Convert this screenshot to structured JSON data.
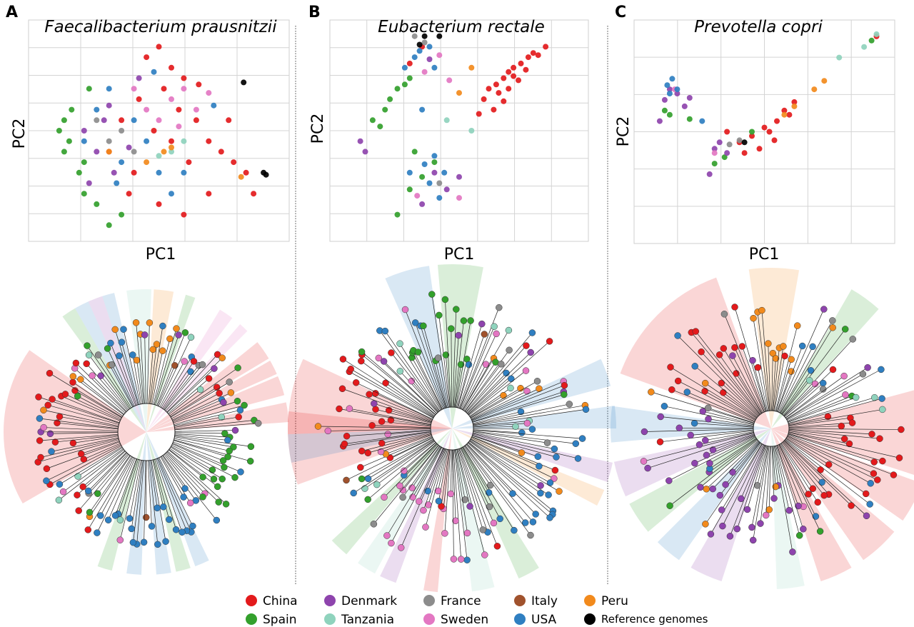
{
  "figure": {
    "panels": [
      {
        "letter": "A",
        "species": "Faecalibacterium prausnitzii",
        "xlabel": "PC1",
        "ylabel": "PC2"
      },
      {
        "letter": "B",
        "species": "Eubacterium rectale",
        "xlabel": "PC1",
        "ylabel": "PC2"
      },
      {
        "letter": "C",
        "species": "Prevotella copri",
        "xlabel": "PC1",
        "ylabel": "PC2"
      }
    ],
    "legend": [
      {
        "label": "China",
        "color": "#e31a1c"
      },
      {
        "label": "Spain",
        "color": "#33a02c"
      },
      {
        "label": "Denmark",
        "color": "#8e44ad"
      },
      {
        "label": "Tanzania",
        "color": "#8fd3bd"
      },
      {
        "label": "France",
        "color": "#8c8c8c"
      },
      {
        "label": "Sweden",
        "color": "#e377c2"
      },
      {
        "label": "Italy",
        "color": "#a0522d"
      },
      {
        "label": "USA",
        "color": "#2f7fc1"
      },
      {
        "label": "Peru",
        "color": "#f28a1c"
      },
      {
        "label": "Reference genomes",
        "color": "#000000"
      }
    ]
  },
  "chart_data": [
    {
      "type": "scatter",
      "title": "Faecalibacterium prausnitzii",
      "xlabel": "PC1",
      "ylabel": "PC2",
      "grid": true,
      "ticks_labeled": false,
      "series": [
        {
          "name": "China",
          "color": "#e31a1c",
          "points": [
            [
              0.45,
              0.85
            ],
            [
              0.5,
              0.9
            ],
            [
              0.55,
              0.8
            ],
            [
              0.6,
              0.75
            ],
            [
              0.52,
              0.7
            ],
            [
              0.58,
              0.6
            ],
            [
              0.65,
              0.55
            ],
            [
              0.7,
              0.45
            ],
            [
              0.75,
              0.4
            ],
            [
              0.8,
              0.35
            ],
            [
              0.85,
              0.3
            ],
            [
              0.48,
              0.5
            ],
            [
              0.55,
              0.45
            ],
            [
              0.62,
              0.35
            ],
            [
              0.7,
              0.2
            ],
            [
              0.6,
              0.1
            ],
            [
              0.5,
              0.15
            ],
            [
              0.4,
              0.3
            ],
            [
              0.35,
              0.55
            ],
            [
              0.42,
              0.65
            ],
            [
              0.88,
              0.2
            ],
            [
              0.78,
              0.55
            ],
            [
              0.66,
              0.72
            ],
            [
              0.3,
              0.4
            ],
            [
              0.38,
              0.2
            ]
          ]
        },
        {
          "name": "Spain",
          "color": "#33a02c",
          "points": [
            [
              0.1,
              0.5
            ],
            [
              0.12,
              0.4
            ],
            [
              0.15,
              0.6
            ],
            [
              0.18,
              0.3
            ],
            [
              0.2,
              0.2
            ],
            [
              0.22,
              0.7
            ],
            [
              0.14,
              0.45
            ],
            [
              0.25,
              0.15
            ],
            [
              0.3,
              0.05
            ],
            [
              0.12,
              0.55
            ],
            [
              0.2,
              0.35
            ],
            [
              0.35,
              0.1
            ]
          ]
        },
        {
          "name": "Denmark",
          "color": "#8e44ad",
          "points": [
            [
              0.2,
              0.5
            ],
            [
              0.25,
              0.4
            ],
            [
              0.28,
              0.55
            ],
            [
              0.32,
              0.3
            ],
            [
              0.3,
              0.62
            ],
            [
              0.38,
              0.42
            ],
            [
              0.22,
              0.25
            ],
            [
              0.42,
              0.75
            ]
          ]
        },
        {
          "name": "Tanzania",
          "color": "#8fd3bd",
          "points": [
            [
              0.55,
              0.4
            ],
            [
              0.6,
              0.45
            ],
            [
              0.5,
              0.38
            ]
          ]
        },
        {
          "name": "France",
          "color": "#8c8c8c",
          "points": [
            [
              0.3,
              0.45
            ],
            [
              0.35,
              0.5
            ],
            [
              0.4,
              0.4
            ],
            [
              0.25,
              0.55
            ]
          ]
        },
        {
          "name": "Sweden",
          "color": "#e377c2",
          "points": [
            [
              0.45,
              0.6
            ],
            [
              0.55,
              0.65
            ],
            [
              0.6,
              0.7
            ],
            [
              0.5,
              0.55
            ],
            [
              0.65,
              0.6
            ],
            [
              0.7,
              0.68
            ],
            [
              0.4,
              0.7
            ],
            [
              0.58,
              0.52
            ]
          ]
        },
        {
          "name": "USA",
          "color": "#2f7fc1",
          "points": [
            [
              0.25,
              0.6
            ],
            [
              0.3,
              0.7
            ],
            [
              0.35,
              0.35
            ],
            [
              0.4,
              0.55
            ],
            [
              0.45,
              0.45
            ],
            [
              0.5,
              0.3
            ],
            [
              0.55,
              0.2
            ],
            [
              0.6,
              0.3
            ],
            [
              0.2,
              0.45
            ],
            [
              0.33,
              0.25
            ],
            [
              0.48,
              0.78
            ],
            [
              0.72,
              0.62
            ]
          ]
        },
        {
          "name": "Peru",
          "color": "#f28a1c",
          "points": [
            [
              0.3,
              0.4
            ],
            [
              0.52,
              0.4
            ],
            [
              0.55,
              0.42
            ],
            [
              0.45,
              0.35
            ],
            [
              0.83,
              0.28
            ]
          ]
        },
        {
          "name": "Reference genomes",
          "color": "#000000",
          "points": [
            [
              0.84,
              0.73
            ],
            [
              0.92,
              0.3
            ],
            [
              0.93,
              0.29
            ]
          ]
        }
      ]
    },
    {
      "type": "scatter",
      "title": "Eubacterium rectale",
      "xlabel": "PC1",
      "ylabel": "PC2",
      "grid": true,
      "ticks_labeled": false,
      "series": [
        {
          "name": "China",
          "color": "#e31a1c",
          "points": [
            [
              0.6,
              0.65
            ],
            [
              0.62,
              0.7
            ],
            [
              0.65,
              0.72
            ],
            [
              0.68,
              0.75
            ],
            [
              0.7,
              0.78
            ],
            [
              0.72,
              0.8
            ],
            [
              0.75,
              0.82
            ],
            [
              0.78,
              0.85
            ],
            [
              0.8,
              0.87
            ],
            [
              0.64,
              0.6
            ],
            [
              0.66,
              0.68
            ],
            [
              0.7,
              0.7
            ],
            [
              0.74,
              0.74
            ],
            [
              0.58,
              0.58
            ],
            [
              0.77,
              0.79
            ],
            [
              0.82,
              0.86
            ],
            [
              0.68,
              0.64
            ],
            [
              0.72,
              0.76
            ],
            [
              0.85,
              0.9
            ],
            [
              0.3,
              0.82
            ],
            [
              0.35,
              0.9
            ]
          ]
        },
        {
          "name": "Spain",
          "color": "#33a02c",
          "points": [
            [
              0.15,
              0.55
            ],
            [
              0.2,
              0.6
            ],
            [
              0.22,
              0.65
            ],
            [
              0.25,
              0.7
            ],
            [
              0.28,
              0.72
            ],
            [
              0.18,
              0.52
            ],
            [
              0.3,
              0.75
            ],
            [
              0.35,
              0.28
            ],
            [
              0.3,
              0.22
            ],
            [
              0.25,
              0.1
            ],
            [
              0.4,
              0.35
            ],
            [
              0.32,
              0.4
            ]
          ]
        },
        {
          "name": "Denmark",
          "color": "#8e44ad",
          "points": [
            [
              0.1,
              0.45
            ],
            [
              0.12,
              0.4
            ],
            [
              0.4,
              0.3
            ],
            [
              0.45,
              0.22
            ],
            [
              0.35,
              0.15
            ],
            [
              0.5,
              0.28
            ],
            [
              0.38,
              0.84
            ]
          ]
        },
        {
          "name": "Tanzania",
          "color": "#8fd3bd",
          "points": [
            [
              0.55,
              0.5
            ],
            [
              0.45,
              0.55
            ]
          ]
        },
        {
          "name": "France",
          "color": "#8c8c8c",
          "points": [
            [
              0.32,
              0.95
            ],
            [
              0.36,
              0.92
            ],
            [
              0.42,
              0.25
            ]
          ]
        },
        {
          "name": "Sweden",
          "color": "#e377c2",
          "points": [
            [
              0.36,
              0.78
            ],
            [
              0.42,
              0.86
            ],
            [
              0.46,
              0.74
            ],
            [
              0.5,
              0.18
            ],
            [
              0.33,
              0.19
            ]
          ]
        },
        {
          "name": "USA",
          "color": "#2f7fc1",
          "points": [
            [
              0.32,
              0.85
            ],
            [
              0.34,
              0.88
            ],
            [
              0.38,
              0.9
            ],
            [
              0.4,
              0.8
            ],
            [
              0.28,
              0.8
            ],
            [
              0.36,
              0.34
            ],
            [
              0.4,
              0.38
            ],
            [
              0.44,
              0.3
            ],
            [
              0.38,
              0.25
            ],
            [
              0.3,
              0.3
            ],
            [
              0.42,
              0.18
            ],
            [
              0.35,
              0.6
            ]
          ]
        },
        {
          "name": "Peru",
          "color": "#f28a1c",
          "points": [
            [
              0.55,
              0.8
            ],
            [
              0.5,
              0.68
            ]
          ]
        },
        {
          "name": "Reference genomes",
          "color": "#000000",
          "points": [
            [
              0.36,
              0.95
            ],
            [
              0.42,
              0.95
            ],
            [
              0.34,
              0.91
            ]
          ]
        }
      ]
    },
    {
      "type": "scatter",
      "title": "Prevotella copri",
      "xlabel": "PC1",
      "ylabel": "PC2",
      "grid": true,
      "ticks_labeled": false,
      "series": [
        {
          "name": "China",
          "color": "#e31a1c",
          "points": [
            [
              0.4,
              0.45
            ],
            [
              0.45,
              0.48
            ],
            [
              0.5,
              0.52
            ],
            [
              0.55,
              0.55
            ],
            [
              0.6,
              0.58
            ],
            [
              0.48,
              0.42
            ],
            [
              0.52,
              0.5
            ],
            [
              0.58,
              0.6
            ],
            [
              0.62,
              0.64
            ],
            [
              0.35,
              0.5
            ],
            [
              0.42,
              0.4
            ],
            [
              0.54,
              0.46
            ],
            [
              0.95,
              0.95
            ]
          ]
        },
        {
          "name": "Spain",
          "color": "#33a02c",
          "points": [
            [
              0.1,
              0.6
            ],
            [
              0.12,
              0.58
            ],
            [
              0.2,
              0.56
            ],
            [
              0.3,
              0.35
            ],
            [
              0.34,
              0.38
            ],
            [
              0.45,
              0.5
            ],
            [
              0.93,
              0.93
            ]
          ]
        },
        {
          "name": "Denmark",
          "color": "#8e44ad",
          "points": [
            [
              0.1,
              0.65
            ],
            [
              0.12,
              0.7
            ],
            [
              0.15,
              0.68
            ],
            [
              0.18,
              0.62
            ],
            [
              0.2,
              0.66
            ],
            [
              0.3,
              0.42
            ],
            [
              0.32,
              0.45
            ],
            [
              0.35,
              0.4
            ],
            [
              0.08,
              0.55
            ],
            [
              0.28,
              0.3
            ]
          ]
        },
        {
          "name": "Tanzania",
          "color": "#8fd3bd",
          "points": [
            [
              0.8,
              0.85
            ],
            [
              0.9,
              0.9
            ],
            [
              0.95,
              0.96
            ]
          ]
        },
        {
          "name": "France",
          "color": "#8c8c8c",
          "points": [
            [
              0.36,
              0.44
            ],
            [
              0.4,
              0.46
            ]
          ]
        },
        {
          "name": "Sweden",
          "color": "#e377c2",
          "points": [
            [
              0.14,
              0.7
            ],
            [
              0.3,
              0.4
            ]
          ]
        },
        {
          "name": "USA",
          "color": "#2f7fc1",
          "points": [
            [
              0.11,
              0.72
            ],
            [
              0.13,
              0.75
            ],
            [
              0.15,
              0.7
            ],
            [
              0.12,
              0.68
            ],
            [
              0.25,
              0.55
            ]
          ]
        },
        {
          "name": "Peru",
          "color": "#f28a1c",
          "points": [
            [
              0.58,
              0.58
            ],
            [
              0.62,
              0.62
            ],
            [
              0.7,
              0.7
            ],
            [
              0.74,
              0.74
            ]
          ]
        },
        {
          "name": "Reference genomes",
          "color": "#000000",
          "points": [
            [
              0.42,
              0.45
            ]
          ]
        }
      ]
    }
  ]
}
